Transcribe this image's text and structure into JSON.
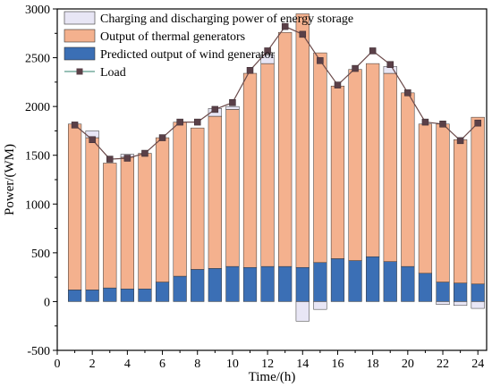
{
  "chart_data": {
    "type": "bar",
    "xlabel": "Time/(h)",
    "ylabel": "Power/(WM)",
    "xlim": [
      0,
      24.5
    ],
    "ylim": [
      -500,
      3000
    ],
    "xticks": [
      0,
      2,
      4,
      6,
      8,
      10,
      12,
      14,
      16,
      18,
      20,
      22,
      24
    ],
    "yticks": [
      -500,
      0,
      500,
      1000,
      1500,
      2000,
      2500,
      3000
    ],
    "x": [
      1,
      2,
      3,
      4,
      5,
      6,
      7,
      8,
      9,
      10,
      11,
      12,
      13,
      14,
      15,
      16,
      17,
      18,
      19,
      20,
      21,
      22,
      23,
      24
    ],
    "series": [
      {
        "name": "Charging and discharging power of energy storage",
        "kind": "bar-stack-top",
        "color": "#e8e6f5",
        "values": [
          0,
          70,
          0,
          30,
          0,
          0,
          0,
          0,
          80,
          30,
          0,
          90,
          0,
          -200,
          -80,
          0,
          0,
          0,
          70,
          0,
          0,
          -30,
          -40,
          -70
        ]
      },
      {
        "name": "Output of thermal generators",
        "kind": "bar-stack",
        "color": "#f4b18e",
        "values": [
          1700,
          1560,
          1280,
          1350,
          1390,
          1480,
          1580,
          1450,
          1560,
          1610,
          1990,
          2080,
          2400,
          2600,
          2150,
          1770,
          1960,
          1980,
          1930,
          1780,
          1530,
          1620,
          1470,
          1710
        ]
      },
      {
        "name": "Predicted output of wind generator",
        "kind": "bar-stack",
        "color": "#3b6fb5",
        "values": [
          120,
          120,
          140,
          130,
          130,
          200,
          260,
          330,
          340,
          360,
          350,
          360,
          360,
          350,
          400,
          440,
          420,
          460,
          410,
          360,
          290,
          200,
          190,
          180
        ]
      },
      {
        "name": "Load",
        "kind": "line",
        "color": "#6b4a4a",
        "values": [
          1810,
          1660,
          1460,
          1470,
          1520,
          1680,
          1840,
          1840,
          1970,
          2040,
          2370,
          2570,
          2820,
          2740,
          2470,
          2220,
          2390,
          2570,
          2430,
          2140,
          1840,
          1820,
          1650,
          1830
        ]
      }
    ],
    "legend_position": "top-left",
    "grid": false
  }
}
